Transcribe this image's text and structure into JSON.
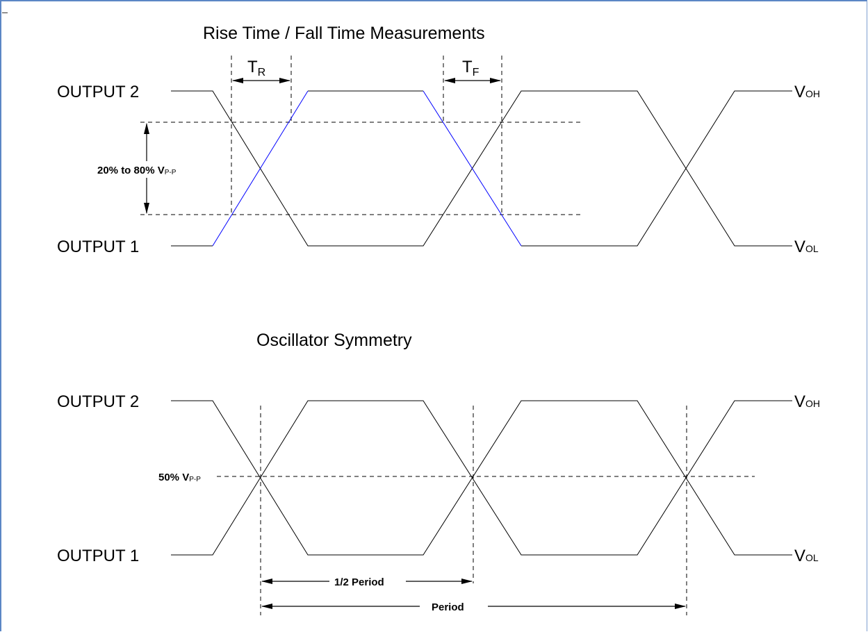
{
  "diagram1": {
    "title": "Rise Time / Fall Time Measurements",
    "output2": "OUTPUT 2",
    "output1": "OUTPUT 1",
    "tr_main": "T",
    "tr_sub": "R",
    "tf_main": "T",
    "tf_sub": "F",
    "range_main": "20% to 80% V",
    "range_sub": "P-P",
    "voh_main": "V",
    "voh_sub": "OH",
    "vol_main": "V",
    "vol_sub": "OL"
  },
  "diagram2": {
    "title": "Oscillator Symmetry",
    "output2": "OUTPUT 2",
    "output1": "OUTPUT 1",
    "mid_main": "50% V",
    "mid_sub": "P-P",
    "voh_main": "V",
    "voh_sub": "OH",
    "vol_main": "V",
    "vol_sub": "OL",
    "half_period": "1/2 Period",
    "period": "Period"
  },
  "colors": {
    "frame": "#5b86c5",
    "highlight": "#0000ff",
    "line": "#000000"
  }
}
